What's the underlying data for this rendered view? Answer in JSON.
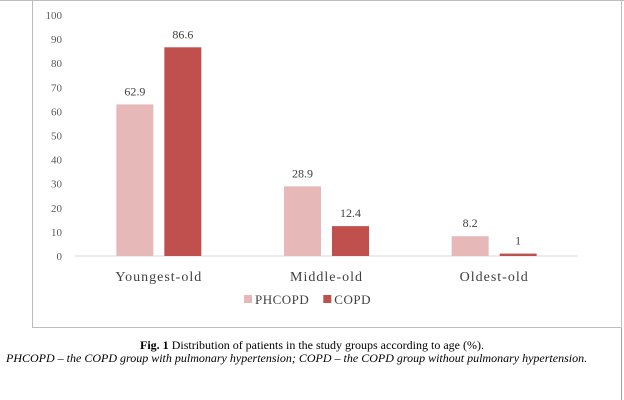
{
  "chart_data": {
    "type": "bar",
    "categories": [
      "Youngest-old",
      "Middle-old",
      "Oldest-old"
    ],
    "series": [
      {
        "name": "PHCOPD",
        "values": [
          62.9,
          28.9,
          8.2
        ],
        "color": "#e6b8b7"
      },
      {
        "name": "COPD",
        "values": [
          86.6,
          12.4,
          1
        ],
        "color": "#c0504d"
      }
    ],
    "data_labels": [
      [
        "62.9",
        "28.9",
        "8.2"
      ],
      [
        "86.6",
        "12.4",
        "1"
      ]
    ],
    "ylim": [
      0,
      100
    ],
    "yticks": [
      0,
      10,
      20,
      30,
      40,
      50,
      60,
      70,
      80,
      90,
      100
    ],
    "grid": false,
    "legend": "bottom-center"
  },
  "caption": {
    "label": "Fig. 1",
    "text": " Distribution of patients in the study groups according to age (%)."
  },
  "note": "PHCOPD – the COPD group with pulmonary hypertension; COPD – the COPD group without pulmonary hypertension."
}
